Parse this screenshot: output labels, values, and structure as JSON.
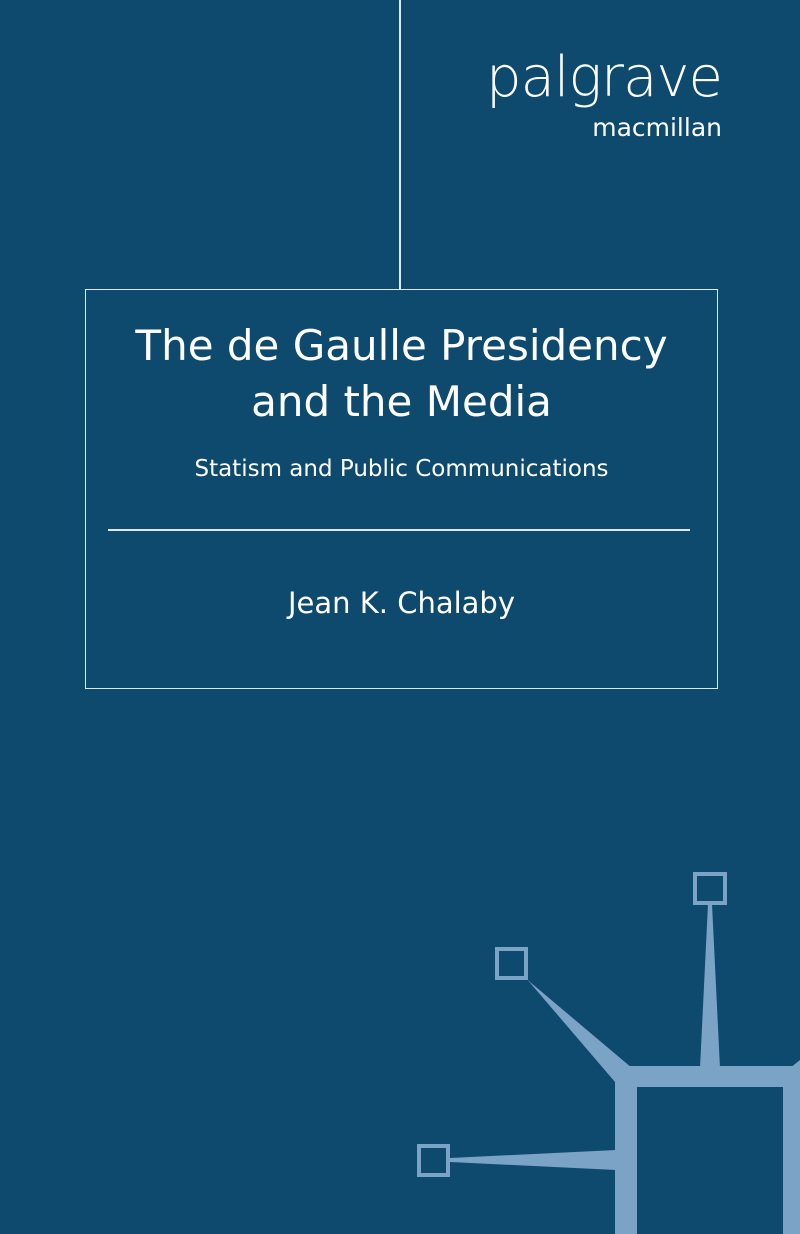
{
  "publisher": {
    "name": "palgrave",
    "imprint": "macmillan"
  },
  "book": {
    "title_line1": "The de Gaulle Presidency",
    "title_line2": "and the Media",
    "subtitle": "Statism and Public Communications",
    "author": "Jean K. Chalaby"
  },
  "colors": {
    "background": "#0d4a6e",
    "graphic": "#7aa3c6",
    "text": "#ffffff"
  }
}
